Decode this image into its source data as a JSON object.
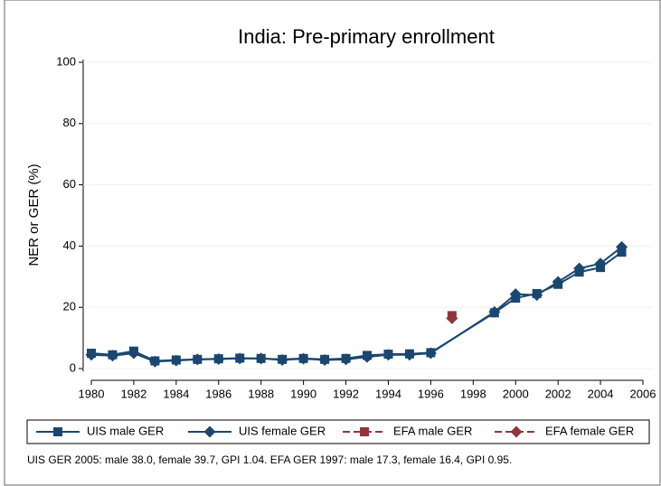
{
  "chart_data": {
    "type": "line",
    "title": "India: Pre-primary enrollment",
    "y_label": "NER or GER (%)",
    "note": "UIS GER 2005: male 38.0, female 39.7, GPI 1.04. EFA GER 1997: male 17.3, female 16.4, GPI 0.95.",
    "xlim": [
      1980,
      2006
    ],
    "xticks": [
      1980,
      1982,
      1984,
      1986,
      1988,
      1990,
      1992,
      1994,
      1996,
      1998,
      2000,
      2002,
      2004,
      2006
    ],
    "ylim": [
      0,
      100
    ],
    "yticks": [
      0,
      20,
      40,
      60,
      80,
      100
    ],
    "grid": true,
    "legend": "bottom",
    "series": [
      {
        "name": "UIS male GER",
        "color": "#1a476f",
        "marker": "square",
        "dashed": false,
        "x": [
          1980,
          1981,
          1982,
          1983,
          1984,
          1985,
          1986,
          1987,
          1988,
          1989,
          1990,
          1991,
          1992,
          1993,
          1994,
          1995,
          1996,
          1999,
          2000,
          2001,
          2002,
          2003,
          2004,
          2005
        ],
        "values": [
          5.0,
          4.5,
          5.7,
          2.5,
          2.8,
          3.0,
          3.2,
          3.4,
          3.3,
          3.0,
          3.3,
          3.0,
          3.3,
          4.3,
          4.7,
          4.8,
          5.2,
          18.2,
          23.0,
          24.5,
          27.5,
          31.5,
          33.0,
          38.0
        ]
      },
      {
        "name": "UIS female GER",
        "color": "#1a476f",
        "marker": "diamond",
        "dashed": false,
        "x": [
          1980,
          1981,
          1982,
          1983,
          1984,
          1985,
          1986,
          1987,
          1988,
          1989,
          1990,
          1991,
          1992,
          1993,
          1994,
          1995,
          1996,
          1999,
          2000,
          2001,
          2002,
          2003,
          2004,
          2005
        ],
        "values": [
          4.5,
          4.2,
          5.0,
          2.3,
          2.6,
          3.0,
          3.1,
          3.3,
          3.3,
          2.8,
          3.2,
          2.8,
          3.0,
          3.8,
          4.5,
          4.5,
          5.0,
          18.5,
          24.3,
          24.0,
          28.3,
          32.7,
          34.3,
          39.7
        ]
      },
      {
        "name": "EFA male GER",
        "color": "#90353b",
        "marker": "square",
        "dashed": true,
        "x": [
          1997
        ],
        "values": [
          17.3
        ]
      },
      {
        "name": "EFA female GER",
        "color": "#90353b",
        "marker": "diamond",
        "dashed": true,
        "x": [
          1997
        ],
        "values": [
          16.4
        ]
      }
    ]
  }
}
